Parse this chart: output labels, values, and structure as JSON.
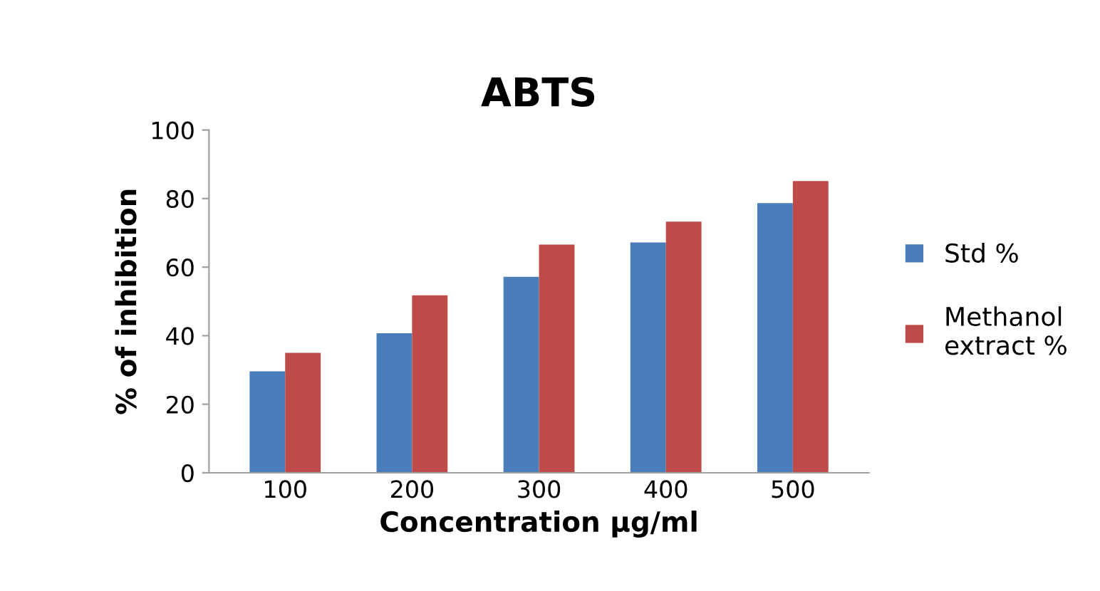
{
  "chart_data": {
    "type": "bar",
    "title": "ABTS",
    "xlabel": "Concentration µg/ml",
    "ylabel": "% of inhibition",
    "categories": [
      "100",
      "200",
      "300",
      "400",
      "500"
    ],
    "series": [
      {
        "name": "Std %",
        "color": "#4a7ebb",
        "values": [
          29.6,
          40.7,
          57.2,
          67.2,
          78.7
        ]
      },
      {
        "name": "Methanol\nextract %",
        "color": "#be4b48",
        "values": [
          35.0,
          51.8,
          66.6,
          73.3,
          85.1
        ]
      }
    ],
    "ylim": [
      0,
      100
    ],
    "yticks": [
      0,
      20,
      40,
      60,
      80,
      100
    ],
    "grid": false,
    "legend": "right"
  }
}
